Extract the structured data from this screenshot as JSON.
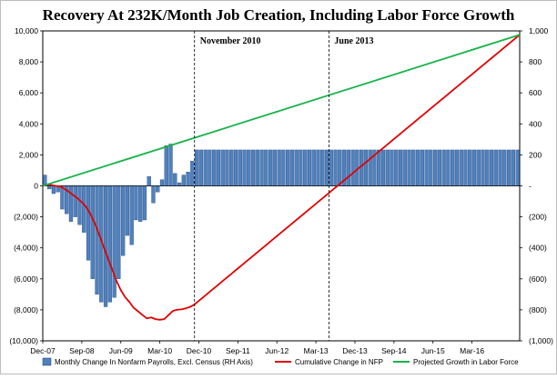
{
  "chart_data": {
    "type": "bar+line",
    "title": "Recovery At 232K/Month Job Creation, Including Labor Force Growth",
    "left_axis": {
      "ylim": [
        -10000,
        10000
      ],
      "ticks": [
        "10,000",
        "8,000",
        "6,000",
        "4,000",
        "2,000",
        "0",
        "(2,000)",
        "(4,000)",
        "(6,000)",
        "(8,000)",
        "(10,000)"
      ],
      "tick_values": [
        10000,
        8000,
        6000,
        4000,
        2000,
        0,
        -2000,
        -4000,
        -6000,
        -8000,
        -10000
      ]
    },
    "right_axis": {
      "ylim": [
        -1000,
        1000
      ],
      "ticks": [
        "1,000",
        "800",
        "600",
        "400",
        "200",
        "-",
        "(200)",
        "(400)",
        "(600)",
        "(800)",
        "(1,000)"
      ],
      "tick_values": [
        1000,
        800,
        600,
        400,
        200,
        0,
        -200,
        -400,
        -600,
        -800,
        -1000
      ]
    },
    "x_axis": {
      "tick_labels": [
        "Dec-07",
        "Sep-08",
        "Jun-09",
        "Mar-10",
        "Dec-10",
        "Sep-11",
        "Jun-12",
        "Mar-13",
        "Dec-13",
        "Sep-14",
        "Jun-15",
        "Mar-16"
      ],
      "tick_months": [
        0,
        9,
        18,
        27,
        36,
        45,
        54,
        63,
        72,
        81,
        90,
        99
      ],
      "months_total": 110
    },
    "annotations": [
      {
        "label": "November 2010",
        "month": 35
      },
      {
        "label": "June 2013",
        "month": 66
      }
    ],
    "series": [
      {
        "name": "Monthly Change In Nonfarm Payrolls, Excl. Census (RH Axis)",
        "kind": "bar",
        "axis": "right",
        "color": "#4F81BD",
        "monthly_values": [
          70,
          -20,
          -50,
          -40,
          -150,
          -180,
          -230,
          -200,
          -250,
          -300,
          -480,
          -600,
          -700,
          -750,
          -780,
          -750,
          -720,
          -600,
          -450,
          -320,
          -380,
          -220,
          -230,
          -220,
          60,
          -110,
          -40,
          40,
          260,
          270,
          80,
          20,
          70,
          90,
          160,
          232
        ],
        "projected_value": 232,
        "projected_from_month": 36,
        "projected_to_month": 110
      },
      {
        "name": "Cumulative Change in NFP",
        "kind": "line",
        "axis": "left",
        "color": "#E00000"
      },
      {
        "name": "Projected Growth in Labor Force",
        "kind": "line",
        "axis": "left",
        "color": "#18B34A"
      }
    ]
  }
}
